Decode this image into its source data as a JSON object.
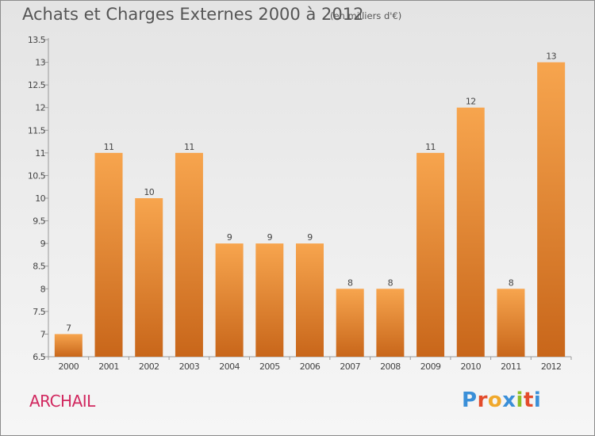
{
  "header": {
    "title": "Achats et Charges Externes 2000 à 2012",
    "unit": "(en milliers d'€)"
  },
  "footer": {
    "commune": "ARCHAIL",
    "logo": "Proxiti",
    "logo_colors": [
      "#3a8fd8",
      "#e34b2b",
      "#f0a82b",
      "#3a8fd8",
      "#8cbf26",
      "#e34b2b",
      "#3a8fd8"
    ]
  },
  "colors": {
    "bar_top": "#f7a54e",
    "bar_bottom": "#c8661a",
    "commune": "#d1285f",
    "text": "#555555"
  },
  "chart_data": {
    "type": "bar",
    "title": "Achats et Charges Externes 2000 à 2012",
    "xlabel": "",
    "ylabel": "",
    "categories": [
      "2000",
      "2001",
      "2002",
      "2003",
      "2004",
      "2005",
      "2006",
      "2007",
      "2008",
      "2009",
      "2010",
      "2011",
      "2012"
    ],
    "values": [
      7,
      11,
      10,
      11,
      9,
      9,
      9,
      8,
      8,
      11,
      12,
      8,
      13
    ],
    "data_labels": [
      "7",
      "11",
      "10",
      "11",
      "9",
      "9",
      "9",
      "8",
      "8",
      "11",
      "12",
      "8",
      "13"
    ],
    "ylim": [
      6.5,
      13.5
    ],
    "yticks": [
      6.5,
      7,
      7.5,
      8,
      8.5,
      9,
      9.5,
      10,
      10.5,
      11,
      11.5,
      12,
      12.5,
      13,
      13.5
    ],
    "ytick_labels": [
      "6.5",
      "7",
      "7.5",
      "8",
      "8.5",
      "9",
      "9.5",
      "10",
      "10.5",
      "11",
      "11.5",
      "12",
      "12.5",
      "13",
      "13.5"
    ],
    "grid": false,
    "legend": "none"
  }
}
